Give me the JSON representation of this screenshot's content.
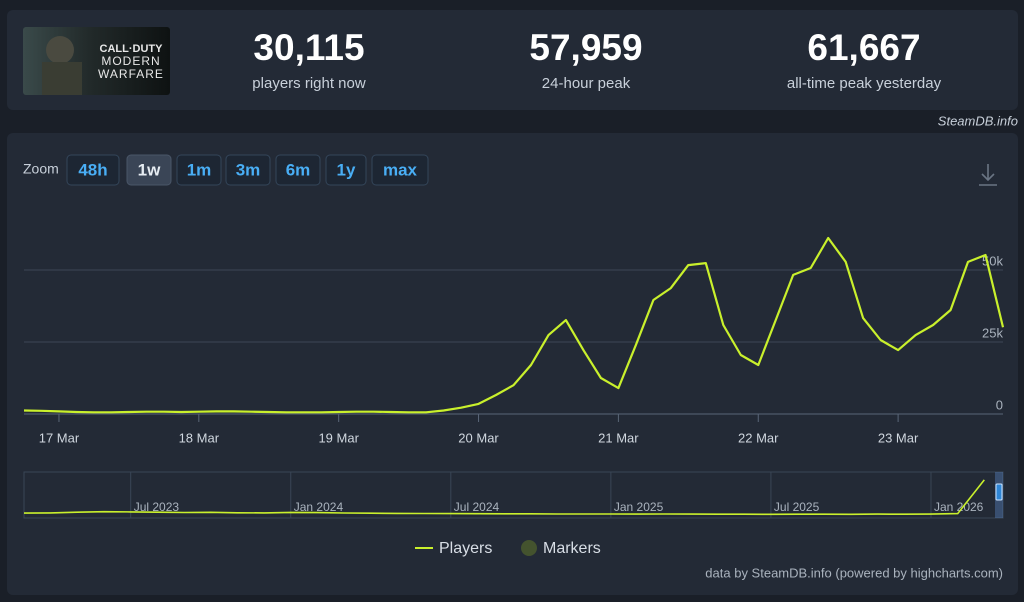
{
  "header": {
    "logo": {
      "line1": "CALL·DUTY",
      "line2": "MODERN",
      "line3": "WARFARE"
    },
    "stats": [
      {
        "value": "30,115",
        "label": "players right now"
      },
      {
        "value": "57,959",
        "label": "24-hour peak"
      },
      {
        "value": "61,667",
        "label": "all-time peak yesterday"
      }
    ]
  },
  "watermark": "SteamDB.info",
  "zoom": {
    "label": "Zoom",
    "buttons": [
      "48h",
      "1w",
      "1m",
      "3m",
      "6m",
      "1y",
      "max"
    ],
    "active": "1w"
  },
  "chart_data": [
    {
      "type": "line",
      "categories": [
        null,
        null,
        "17 Mar",
        null,
        null,
        null,
        null,
        null,
        null,
        null,
        "18 Mar",
        null,
        null,
        null,
        null,
        null,
        null,
        null,
        "19 Mar",
        null,
        null,
        null,
        null,
        null,
        null,
        null,
        "20 Mar",
        null,
        null,
        null,
        null,
        null,
        null,
        null,
        "21 Mar",
        null,
        null,
        null,
        null,
        null,
        null,
        null,
        "22 Mar",
        null,
        null,
        null,
        null,
        null,
        null,
        null,
        "23 Mar",
        null,
        null,
        null,
        null,
        null,
        null
      ],
      "series": [
        {
          "name": "Players",
          "color": "#c9f02c",
          "values": [
            1200,
            1100,
            900,
            700,
            600,
            600,
            700,
            800,
            800,
            700,
            800,
            900,
            900,
            800,
            700,
            600,
            600,
            600,
            700,
            800,
            800,
            700,
            600,
            600,
            1200,
            2200,
            3500,
            6600,
            10000,
            17000,
            27400,
            32600,
            22200,
            12500,
            9000,
            24000,
            39600,
            43700,
            51700,
            52400,
            30900,
            20500,
            17000,
            32600,
            48300,
            50700,
            61100,
            52800,
            33300,
            25700,
            22200,
            27400,
            30900,
            36100,
            52800,
            55200,
            30115
          ]
        }
      ],
      "markers": {
        "name": "Markers",
        "color": "#44532e"
      },
      "ylim": [
        0,
        75000
      ],
      "yticks": [
        0,
        {
          "value": 25000,
          "label": "25k"
        },
        {
          "value": 50000,
          "label": "50k"
        }
      ],
      "grid": true
    },
    {
      "type": "line",
      "categories": [
        null,
        null,
        null,
        null,
        "Jul 2023",
        null,
        null,
        null,
        null,
        null,
        "Jan 2024",
        null,
        null,
        null,
        null,
        null,
        "Jul 2024",
        null,
        null,
        null,
        null,
        null,
        "Jan 2025",
        null,
        null,
        null,
        null,
        null,
        "Jul 2025",
        null,
        null,
        null,
        null,
        null,
        "Jan 2026",
        null,
        null
      ],
      "series": [
        {
          "name": "Players",
          "color": "#c9f02c",
          "values": [
            2400,
            2600,
            3200,
            3600,
            3400,
            3200,
            2900,
            3100,
            2700,
            2600,
            3000,
            2800,
            2500,
            2300,
            2200,
            2100,
            2000,
            1900,
            1800,
            1800,
            1700,
            1700,
            1700,
            1600,
            1700,
            1600,
            1500,
            1500,
            1400,
            1500,
            1500,
            1400,
            1600,
            1500,
            1600,
            2000,
            30115
          ]
        }
      ],
      "ylim": [
        0,
        35000
      ]
    }
  ],
  "credits": "data by SteamDB.info (powered by highcharts.com)"
}
